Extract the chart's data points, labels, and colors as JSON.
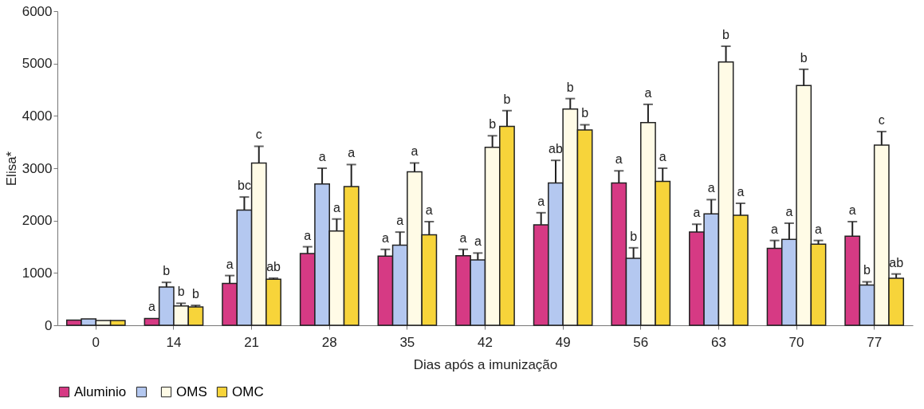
{
  "chart_data": {
    "type": "bar",
    "xlabel": "Dias após a imunização",
    "ylabel": "Elisa*",
    "categories": [
      "0",
      "14",
      "21",
      "28",
      "35",
      "42",
      "49",
      "56",
      "63",
      "70",
      "77"
    ],
    "series": [
      {
        "name": "Aluminio",
        "color": "#d63a84",
        "values": [
          100,
          130,
          800,
          1370,
          1320,
          1330,
          1920,
          2720,
          1780,
          1470,
          1700
        ],
        "errors": [
          null,
          null,
          [
            800,
            950
          ],
          [
            1370,
            1500
          ],
          [
            1320,
            1450
          ],
          [
            1330,
            1450
          ],
          [
            1920,
            2150
          ],
          [
            2720,
            2950
          ],
          [
            1780,
            1930
          ],
          [
            1470,
            1620
          ],
          [
            1700,
            1980
          ]
        ],
        "value_labels": [
          null,
          "a",
          "a",
          "a",
          "a",
          "a",
          "a",
          "a",
          "a",
          "a",
          "a"
        ]
      },
      {
        "color": "#b4c8f0",
        "values": [
          120,
          730,
          2200,
          2700,
          1530,
          1250,
          2720,
          1280,
          2130,
          1640,
          770
        ],
        "errors": [
          null,
          [
            730,
            820
          ],
          [
            2200,
            2450
          ],
          [
            2700,
            3000
          ],
          [
            1530,
            1780
          ],
          [
            1250,
            1380
          ],
          [
            2720,
            3150
          ],
          [
            1280,
            1480
          ],
          [
            2130,
            2400
          ],
          [
            1640,
            1950
          ],
          [
            770,
            830
          ]
        ],
        "value_labels": [
          null,
          "b",
          "bc",
          "a",
          "a",
          "a",
          "ab",
          "b",
          "a",
          "a",
          "b"
        ]
      },
      {
        "name": "OMS",
        "color": "#fffbe6",
        "values": [
          90,
          370,
          3100,
          1800,
          2930,
          3400,
          4130,
          3870,
          5030,
          4580,
          3440
        ],
        "errors": [
          null,
          [
            370,
            420
          ],
          [
            3100,
            3420
          ],
          [
            1800,
            2030
          ],
          [
            2930,
            3100
          ],
          [
            3400,
            3620
          ],
          [
            4130,
            4330
          ],
          [
            3870,
            4220
          ],
          [
            5030,
            5330
          ],
          [
            4580,
            4890
          ],
          [
            3440,
            3700
          ]
        ],
        "value_labels": [
          null,
          "b",
          "c",
          "a",
          "a",
          "b",
          "b",
          "a",
          "b",
          "b",
          "c"
        ]
      },
      {
        "name": "OMC",
        "color": "#f7d43a",
        "values": [
          90,
          350,
          880,
          2650,
          1730,
          3800,
          3730,
          2750,
          2100,
          1550,
          900
        ],
        "errors": [
          null,
          [
            350,
            380
          ],
          [
            880,
            900
          ],
          [
            2650,
            3070
          ],
          [
            1730,
            1980
          ],
          [
            3800,
            4100
          ],
          [
            3730,
            3830
          ],
          [
            2750,
            3000
          ],
          [
            2100,
            2330
          ],
          [
            1550,
            1620
          ],
          [
            900,
            980
          ]
        ],
        "value_labels": [
          null,
          "b",
          "ab",
          "a",
          "a",
          "b",
          "b",
          "a",
          "a",
          "a",
          "ab"
        ]
      }
    ],
    "ylim": [
      0,
      6000
    ],
    "yticks": [
      0,
      1000,
      2000,
      3000,
      4000,
      5000,
      6000
    ],
    "grid": false,
    "legend": "bottom"
  }
}
